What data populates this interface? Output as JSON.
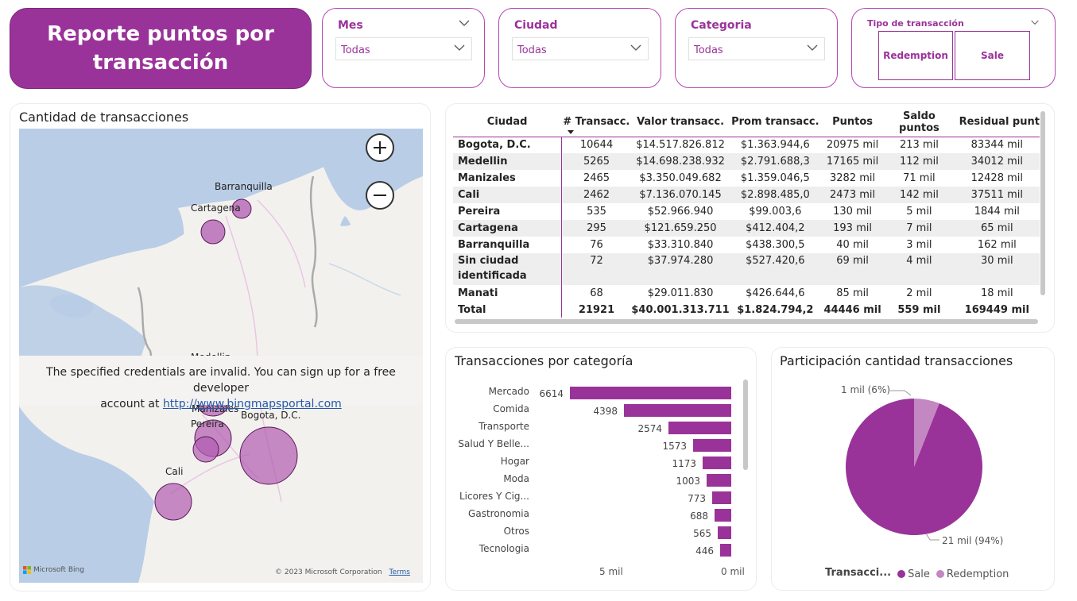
{
  "header": {
    "title": "Reporte puntos por transacción"
  },
  "slicers": [
    {
      "label": "Mes",
      "value": "Todas"
    },
    {
      "label": "Ciudad",
      "value": "Todas"
    },
    {
      "label": "Categoria",
      "value": "Todas"
    }
  ],
  "tipo": {
    "label": "Tipo de transacción",
    "options": [
      "Redemption",
      "Sale"
    ]
  },
  "map": {
    "title": "Cantidad de transacciones",
    "error_line1": "The specified credentials are invalid. You can sign up for a free developer",
    "error_line2": "account at ",
    "error_link": "http://www.bingmapsportal.com",
    "copyright": "© 2023 Microsoft Corporation",
    "terms": "Terms",
    "bing": "Microsoft Bing",
    "cities": [
      "Barranquilla",
      "Cartagena",
      "Manizales",
      "Pereira",
      "Bogota, D.C.",
      "Cali"
    ],
    "hidden_label": "Medellin"
  },
  "table": {
    "columns": [
      "Ciudad",
      "# Transacc.",
      "Valor transacc.",
      "Prom transacc.",
      "Puntos",
      "Saldo puntos",
      "Residual punt"
    ],
    "rows": [
      [
        "Bogota, D.C.",
        "10644",
        "$14.517.826.812",
        "$1.363.944,6",
        "20975 mil",
        "213 mil",
        "83344 mil"
      ],
      [
        "Medellin",
        "5265",
        "$14.698.238.932",
        "$2.791.688,3",
        "17165 mil",
        "112 mil",
        "34012 mil"
      ],
      [
        "Manizales",
        "2465",
        "$3.350.049.682",
        "$1.359.046,5",
        "3282 mil",
        "71 mil",
        "12428 mil"
      ],
      [
        "Cali",
        "2462",
        "$7.136.070.145",
        "$2.898.485,0",
        "2473 mil",
        "142 mil",
        "37511 mil"
      ],
      [
        "Pereira",
        "535",
        "$52.966.940",
        "$99.003,6",
        "130 mil",
        "5 mil",
        "1844 mil"
      ],
      [
        "Cartagena",
        "295",
        "$121.659.250",
        "$412.404,2",
        "193 mil",
        "7 mil",
        "65 mil"
      ],
      [
        "Barranquilla",
        "76",
        "$33.310.840",
        "$438.300,5",
        "40 mil",
        "3 mil",
        "162 mil"
      ],
      [
        "Sin ciudad identificada",
        "72",
        "$37.974.280",
        "$527.420,6",
        "69 mil",
        "4 mil",
        "30 mil"
      ],
      [
        "Manati",
        "68",
        "$29.011.830",
        "$426.644,6",
        "85 mil",
        "2 mil",
        "18 mil"
      ]
    ],
    "total": [
      "Total",
      "21921",
      "$40.001.313.711",
      "$1.824.794,2",
      "44446 mil",
      "559 mil",
      "169449 mil"
    ]
  },
  "bar_chart": {
    "title": "Transacciones por categoría",
    "x_ticks": [
      "5 mil",
      "0 mil"
    ]
  },
  "pie_chart": {
    "title": "Participación cantidad transacciones",
    "label_small": "1 mil (6%)",
    "label_large": "21 mil (94%)",
    "legend_title": "Transacci...",
    "legend": [
      "Sale",
      "Redemption"
    ],
    "colors": {
      "sale": "#9a3399",
      "redemption": "#c387c1"
    }
  },
  "chart_data": [
    {
      "type": "bar",
      "title": "Transacciones por categoría",
      "categories": [
        "Mercado",
        "Comida",
        "Transporte",
        "Salud Y Belle...",
        "Hogar",
        "Moda",
        "Licores Y Cig...",
        "Gastronomia",
        "Otros",
        "Tecnologia"
      ],
      "values": [
        6614,
        4398,
        2574,
        1573,
        1173,
        1003,
        773,
        688,
        565,
        446
      ],
      "xlim": [
        0,
        6614
      ],
      "orientation": "horizontal-reversed"
    },
    {
      "type": "pie",
      "title": "Participación cantidad transacciones",
      "categories": [
        "Sale",
        "Redemption"
      ],
      "values": [
        94,
        6
      ]
    }
  ]
}
